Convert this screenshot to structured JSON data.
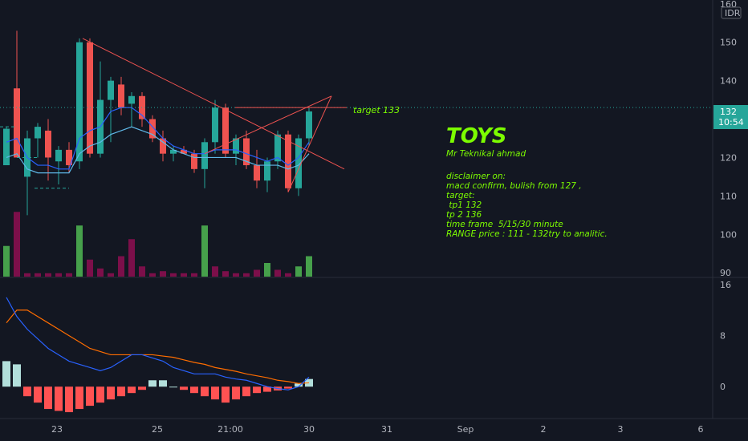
{
  "chart_data": [
    {
      "type": "candlestick",
      "panel": "price",
      "currency": "IDR",
      "y_ticks": [
        90,
        100,
        110,
        120,
        130,
        140,
        150,
        160
      ],
      "ylim": [
        89,
        161
      ],
      "last_price": "132",
      "countdown": "10:54",
      "x_labels": [
        "23",
        "25",
        "21:00",
        "30",
        "31",
        "Sep",
        "2",
        "3",
        "6"
      ],
      "candles": [
        {
          "o": 118,
          "h": 128,
          "l": 118,
          "c": 127.5
        },
        {
          "o": 138,
          "h": 153,
          "l": 120,
          "c": 120
        },
        {
          "o": 115,
          "h": 127,
          "l": 105,
          "c": 125
        },
        {
          "o": 125,
          "h": 129,
          "l": 120,
          "c": 128
        },
        {
          "o": 127,
          "h": 130,
          "l": 114,
          "c": 120
        },
        {
          "o": 119,
          "h": 123,
          "l": 113,
          "c": 122
        },
        {
          "o": 122,
          "h": 124,
          "l": 116,
          "c": 118
        },
        {
          "o": 119,
          "h": 151,
          "l": 117,
          "c": 150
        },
        {
          "o": 150,
          "h": 151,
          "l": 120,
          "c": 121
        },
        {
          "o": 121,
          "h": 145,
          "l": 120,
          "c": 135
        },
        {
          "o": 135,
          "h": 141,
          "l": 124,
          "c": 140
        },
        {
          "o": 139,
          "h": 141,
          "l": 131,
          "c": 133
        },
        {
          "o": 134,
          "h": 137,
          "l": 128,
          "c": 136
        },
        {
          "o": 136,
          "h": 137,
          "l": 128,
          "c": 130
        },
        {
          "o": 130,
          "h": 131,
          "l": 124,
          "c": 125
        },
        {
          "o": 125,
          "h": 127,
          "l": 119,
          "c": 121
        },
        {
          "o": 121,
          "h": 123,
          "l": 119,
          "c": 122
        },
        {
          "o": 122,
          "h": 123,
          "l": 121,
          "c": 121
        },
        {
          "o": 121,
          "h": 122,
          "l": 116,
          "c": 117
        },
        {
          "o": 117,
          "h": 125,
          "l": 112,
          "c": 124
        },
        {
          "o": 124,
          "h": 135,
          "l": 121,
          "c": 133
        },
        {
          "o": 133,
          "h": 134,
          "l": 120,
          "c": 121
        },
        {
          "o": 121,
          "h": 126,
          "l": 118,
          "c": 125
        },
        {
          "o": 125,
          "h": 127,
          "l": 117,
          "c": 118
        },
        {
          "o": 118,
          "h": 122,
          "l": 112,
          "c": 114
        },
        {
          "o": 114,
          "h": 120,
          "l": 111,
          "c": 119
        },
        {
          "o": 119,
          "h": 127,
          "l": 117,
          "c": 126
        },
        {
          "o": 126,
          "h": 127,
          "l": 111,
          "c": 112
        },
        {
          "o": 112,
          "h": 126,
          "l": 110,
          "c": 125
        },
        {
          "o": 125,
          "h": 133,
          "l": 123,
          "c": 132
        }
      ],
      "volume": [
        {
          "v": 0.45,
          "up": true
        },
        {
          "v": 0.95,
          "up": false
        },
        {
          "v": 0.05,
          "up": false
        },
        {
          "v": 0.05,
          "up": false
        },
        {
          "v": 0.05,
          "up": false
        },
        {
          "v": 0.05,
          "up": false
        },
        {
          "v": 0.05,
          "up": false
        },
        {
          "v": 0.75,
          "up": true
        },
        {
          "v": 0.25,
          "up": false
        },
        {
          "v": 0.12,
          "up": false
        },
        {
          "v": 0.05,
          "up": false
        },
        {
          "v": 0.3,
          "up": false
        },
        {
          "v": 0.55,
          "up": false
        },
        {
          "v": 0.15,
          "up": false
        },
        {
          "v": 0.05,
          "up": false
        },
        {
          "v": 0.08,
          "up": false
        },
        {
          "v": 0.05,
          "up": false
        },
        {
          "v": 0.05,
          "up": false
        },
        {
          "v": 0.05,
          "up": false
        },
        {
          "v": 0.75,
          "up": true
        },
        {
          "v": 0.15,
          "up": false
        },
        {
          "v": 0.08,
          "up": false
        },
        {
          "v": 0.05,
          "up": false
        },
        {
          "v": 0.05,
          "up": false
        },
        {
          "v": 0.1,
          "up": false
        },
        {
          "v": 0.2,
          "up": true
        },
        {
          "v": 0.1,
          "up": false
        },
        {
          "v": 0.05,
          "up": false
        },
        {
          "v": 0.15,
          "up": true
        },
        {
          "v": 0.3,
          "up": true
        }
      ],
      "ma_fast": [
        124,
        125,
        120,
        118,
        118,
        117,
        117,
        125,
        127,
        128,
        132,
        133,
        133,
        131,
        128,
        125,
        123,
        122,
        121,
        121,
        122,
        122,
        122,
        121,
        120,
        119,
        120,
        118,
        120,
        124
      ],
      "ma_slow": [
        120,
        121,
        117,
        116,
        116,
        116,
        116,
        121,
        123,
        124,
        126,
        127,
        128,
        127,
        126,
        124,
        122,
        121,
        120,
        120,
        120,
        120,
        120,
        119,
        118,
        118,
        118,
        117,
        118,
        121
      ]
    },
    {
      "type": "macd",
      "panel": "indicator",
      "y_ticks": [
        0,
        8,
        16
      ],
      "ylim": [
        -5,
        17
      ],
      "macd_line": [
        14,
        11,
        9,
        7.5,
        6,
        5,
        4,
        3.5,
        3,
        2.5,
        3,
        4,
        5,
        5,
        4.5,
        4,
        3,
        2.5,
        2,
        2,
        2,
        1.5,
        1.2,
        1,
        0.5,
        0,
        -0.3,
        -0.5,
        0,
        1.5
      ],
      "signal_line": [
        10,
        12,
        12,
        11,
        10,
        9,
        8,
        7,
        6,
        5.5,
        5,
        5,
        5,
        5,
        5,
        4.8,
        4.6,
        4.2,
        3.8,
        3.5,
        3,
        2.7,
        2.4,
        2,
        1.7,
        1.4,
        1,
        0.8,
        0.5,
        0.6
      ],
      "histogram": [
        4,
        3.5,
        -1.5,
        -2.5,
        -3.5,
        -3.8,
        -4,
        -3.5,
        -3,
        -2.5,
        -2,
        -1.5,
        -1,
        -0.5,
        1,
        1,
        0,
        -0.5,
        -1,
        -1.5,
        -2,
        -2.5,
        -2,
        -1.5,
        -1,
        -0.8,
        -0.6,
        -0.3,
        0.5,
        1.2
      ]
    }
  ],
  "annotation": {
    "title": "TOYS",
    "author": "Mr Teknikal ahmad",
    "lines": [
      "disclaimer on:",
      "macd confirm, bulish from 127 ,",
      "target:",
      " tp1 132",
      "tp 2 136",
      "time frame  5/15/30 minute",
      "RANGE price : 111 - 132try to analitic."
    ],
    "target_label": "target 133",
    "target_price": 133
  },
  "colors": {
    "background": "#131722",
    "up": "#26a69a",
    "down": "#ef5350",
    "volume_up": "#4caf50",
    "volume_down": "#880e4f",
    "ma_fast": "#2962ff",
    "ma_slow": "#5fb8e8",
    "macd": "#2962ff",
    "signal": "#ff6d00",
    "hist_up": "#b2dfdb",
    "hist_down": "#ff5252",
    "trendline": "#ef5350",
    "annotation": "#7cfc00",
    "price_tag": "#26a69a"
  }
}
